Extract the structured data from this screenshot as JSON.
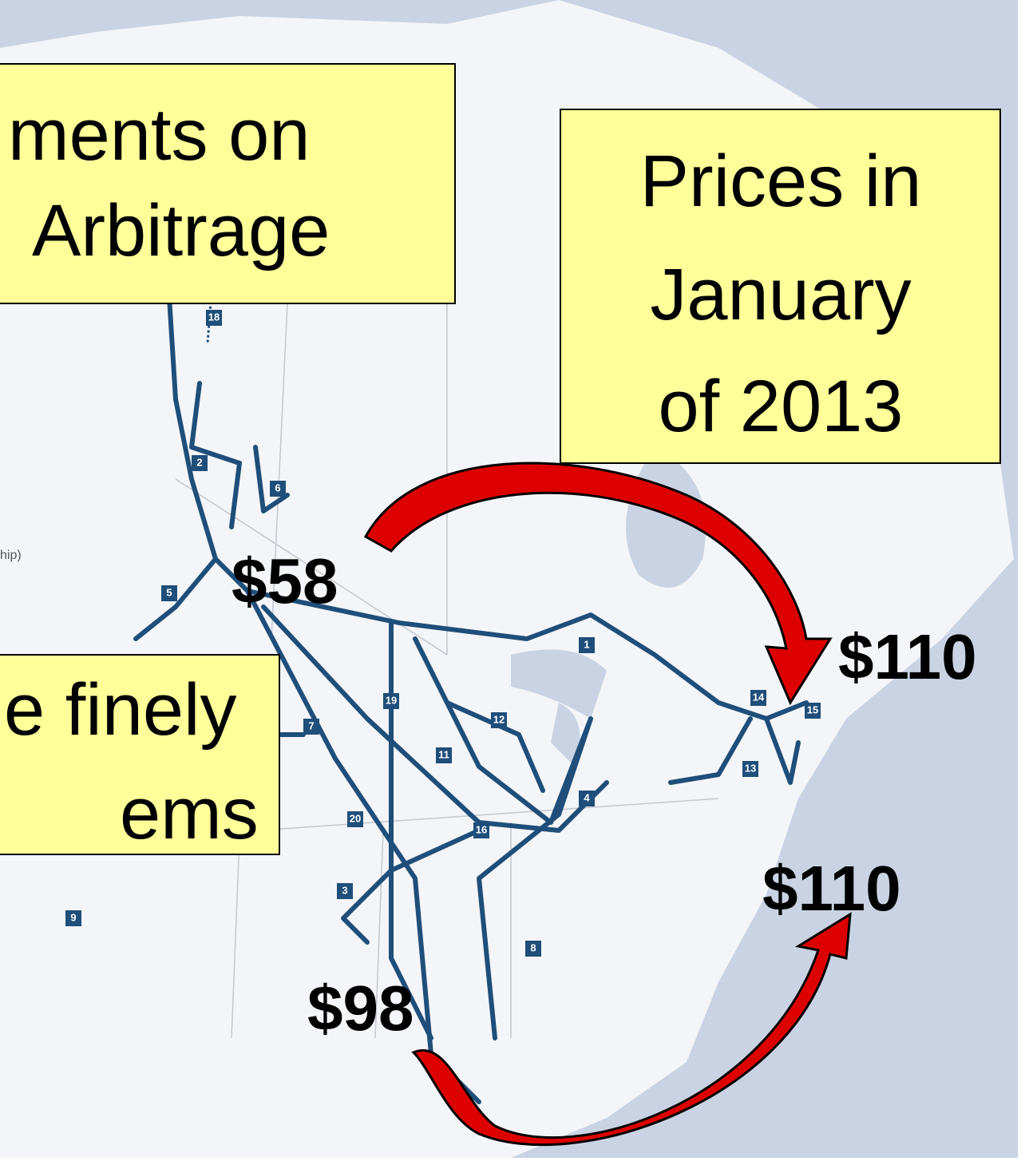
{
  "boxes": [
    {
      "lines": [
        "ments on",
        "Arbitrage"
      ]
    },
    {
      "lines": [
        "Prices in",
        "January",
        "of 2013"
      ]
    },
    {
      "lines": [
        "e finely",
        "ems"
      ]
    }
  ],
  "prices": [
    "$58",
    "$110",
    "$110",
    "$98"
  ],
  "edge_label": "hip)",
  "pipeline_labels": [
    "18",
    "2",
    "6",
    "5",
    "1",
    "12",
    "19",
    "11",
    "20",
    "3",
    "16",
    "13",
    "14",
    "15",
    "9",
    "7",
    "4",
    "8"
  ]
}
